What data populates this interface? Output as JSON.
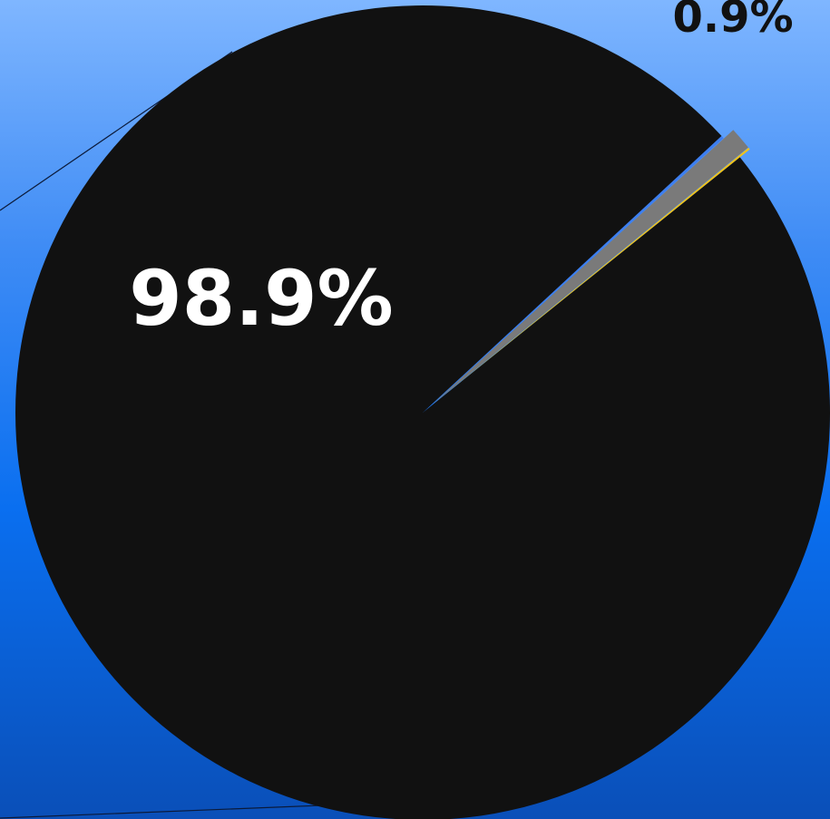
{
  "chart_data": {
    "type": "pie",
    "title": "",
    "slices": [
      {
        "label": "98.9%",
        "value": 98.9,
        "color": "#111111"
      },
      {
        "label": "",
        "value": 0.12,
        "color": "#3d7ef0"
      },
      {
        "label": "0.9%",
        "value": 0.9,
        "color": "#7a7a7a",
        "exploded": true
      },
      {
        "label": "",
        "value": 0.08,
        "color": "#f2c318",
        "exploded": true
      }
    ],
    "colors": {
      "accent": "#111111",
      "highlight": "#f2c318"
    }
  }
}
